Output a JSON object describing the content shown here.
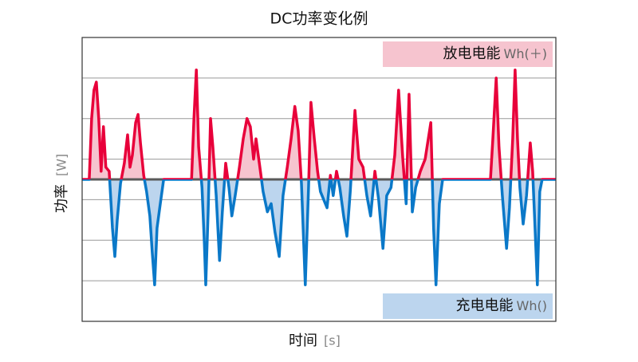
{
  "chart_data": {
    "type": "line",
    "title": "DC功率变化例",
    "xlabel": "时间",
    "xunit": "[s]",
    "ylabel": "功率",
    "yunit": "[W]",
    "xlim": [
      0,
      100
    ],
    "ylim": [
      -3.5,
      3.5
    ],
    "grid": true,
    "positive_color": "#e8003a",
    "negative_color": "#0a78c8",
    "positive_fill": "#f6c4cf",
    "negative_fill": "#bcd5ee",
    "baseline_color": "#5a5a5a",
    "annotations": [
      {
        "text": "放电电能",
        "unit": "Wh(＋)",
        "color": "#f6c4cf"
      },
      {
        "text": "充电电能",
        "unit": "Wh()",
        "color": "#bcd5ee"
      }
    ],
    "x": [
      0,
      1.5,
      2,
      2.5,
      3,
      3.5,
      4,
      4.5,
      5,
      5.7,
      6.4,
      6.9,
      7.4,
      8.1,
      8.9,
      9.6,
      10.1,
      10.6,
      11.3,
      11.8,
      12.3,
      13,
      13.6,
      14.3,
      14.8,
      15.3,
      15.8,
      16.5,
      17.2,
      23.1,
      23.6,
      24.1,
      24.6,
      25.3,
      25.8,
      26.1,
      26.6,
      27.1,
      27.6,
      28.3,
      29,
      29.6,
      30.3,
      31,
      31.6,
      32.3,
      33.2,
      34,
      34.8,
      35.5,
      36.2,
      36.7,
      37.4,
      38.2,
      39.1,
      39.9,
      40.7,
      41.6,
      42.4,
      43.3,
      44.1,
      44.9,
      45.6,
      46.3,
      47.1,
      47.8,
      48.3,
      49,
      49.7,
      50.3,
      51,
      51.7,
      52.4,
      53,
      53.7,
      54.4,
      55.2,
      55.9,
      56.6,
      57.6,
      58.4,
      59.3,
      60.1,
      60.9,
      61.8,
      62.6,
      63.5,
      64.3,
      65.2,
      66,
      66.8,
      67.7,
      68.4,
      69,
      69.7,
      70.4,
      71.4,
      72.4,
      73.6,
      74.2,
      74.7,
      75.4,
      76.1,
      86.2,
      86.7,
      87.4,
      88,
      88.7,
      89.6,
      90.2,
      90.9,
      91.4,
      91.9,
      92.4,
      93.1,
      93.8,
      94.6,
      95.1,
      95.6,
      96.1,
      96.6,
      97.1,
      100
    ],
    "values": [
      0,
      0,
      1.5,
      2.2,
      2.4,
      1.5,
      0.2,
      1.3,
      0.3,
      0.2,
      -1.2,
      -1.9,
      -1.0,
      -0.1,
      0.4,
      1.1,
      0.3,
      0.6,
      1.4,
      1.6,
      0.9,
      0.1,
      -0.3,
      -0.9,
      -1.8,
      -2.6,
      -1.2,
      -0.6,
      0,
      0,
      1.5,
      2.7,
      0.8,
      -0.2,
      -1.6,
      -2.6,
      -0.8,
      1.5,
      0.8,
      -0.4,
      -2.0,
      -0.8,
      0.4,
      -0.2,
      -0.9,
      -0.4,
      0.3,
      1.0,
      1.5,
      1.3,
      0.5,
      1.0,
      0.4,
      -0.3,
      -0.8,
      -0.6,
      -1.3,
      -1.9,
      -0.4,
      0.3,
      1.0,
      1.8,
      1.2,
      -0.1,
      -2.6,
      -0.2,
      1.9,
      1.0,
      0.2,
      -0.3,
      -0.5,
      -0.7,
      0.1,
      -0.4,
      0.2,
      -0.2,
      -0.9,
      -1.4,
      -0.3,
      1.7,
      0.5,
      0.3,
      -0.4,
      -0.9,
      0.2,
      -0.5,
      -1.7,
      -0.4,
      -0.2,
      0.6,
      2.2,
      0.5,
      -0.6,
      2.1,
      -0.8,
      -0.2,
      0.2,
      0.5,
      1.4,
      -1.2,
      -2.6,
      -0.6,
      0,
      0,
      1.0,
      2.5,
      0.8,
      -0.4,
      -1.7,
      -0.7,
      1.0,
      2.7,
      1.0,
      -0.2,
      -1.1,
      -0.4,
      0.9,
      0.2,
      -1.2,
      -2.6,
      -0.3,
      0,
      0
    ]
  }
}
